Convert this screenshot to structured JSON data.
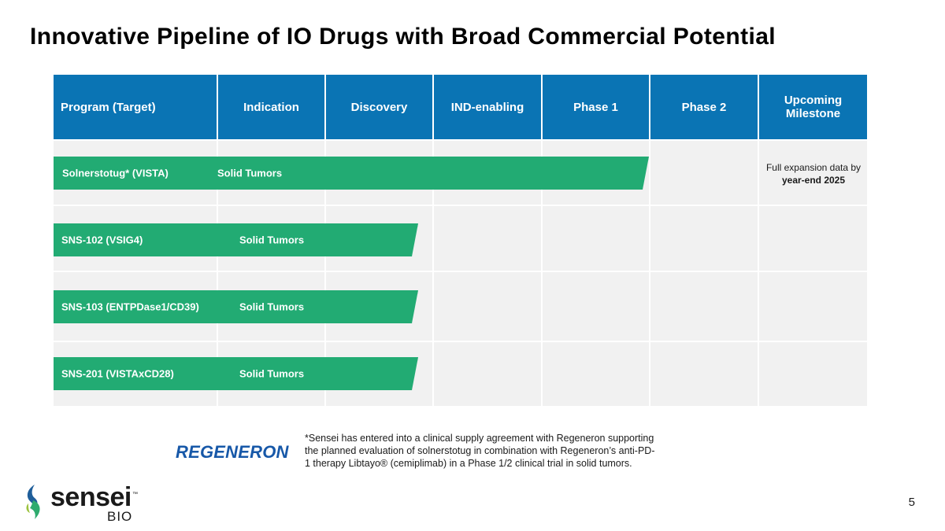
{
  "slide": {
    "title": "Innovative Pipeline of IO Drugs with Broad Commercial Potential",
    "page_number": "5"
  },
  "table": {
    "headers": [
      "Program (Target)",
      "Indication",
      "Discovery",
      "IND-enabling",
      "Phase 1",
      "Phase 2",
      "Upcoming Milestone"
    ],
    "header_color": "#0a74b4",
    "bar_color": "#22ab73",
    "programs": [
      {
        "program": "Solnerstotug* (VISTA)",
        "indication": "Solid Tumors",
        "stage_reached": "Phase 1"
      },
      {
        "program": "SNS-102 (VSIG4)",
        "indication": "Solid Tumors",
        "stage_reached": "Discovery"
      },
      {
        "program": "SNS-103 (ENTPDase1/CD39)",
        "indication": "Solid Tumors",
        "stage_reached": "Discovery"
      },
      {
        "program": "SNS-201 (VISTAxCD28)",
        "indication": "Solid Tumors",
        "stage_reached": "Discovery"
      }
    ],
    "milestone": {
      "prefix": "Full expansion data by",
      "bold": "year-end 2025"
    }
  },
  "partner": {
    "name": "REGENERON",
    "color": "#1758a8",
    "footnote": "*Sensei has entered into a clinical supply agreement with Regeneron supporting the planned evaluation of solnerstotug in combination with Regeneron’s anti-PD-1 therapy Libtayo® (cemiplimab) in a Phase 1/2 clinical trial in solid tumors."
  },
  "logo": {
    "word": "sensei",
    "trademark": "™",
    "sub": "BIO",
    "icon": "sensei-leaf-icon"
  }
}
